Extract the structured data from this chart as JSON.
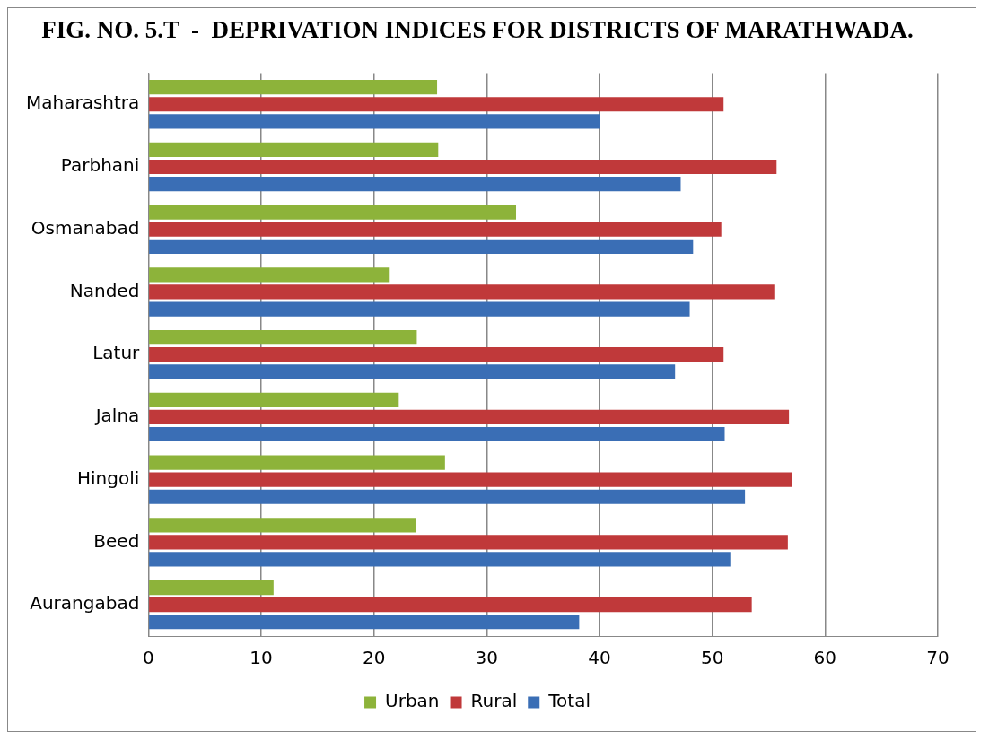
{
  "chart_data": {
    "type": "bar",
    "orientation": "horizontal",
    "title": "FIG. NO. 5.T  -  DEPRIVATION INDICES FOR DISTRICTS OF MARATHWADA.",
    "categories": [
      "Maharashtra",
      "Parbhani",
      "Osmanabad",
      "Nanded",
      "Latur",
      "Jalna",
      "Hingoli",
      "Beed",
      "Aurangabad"
    ],
    "series": [
      {
        "name": "Urban",
        "color": "#8db33a",
        "values": [
          25.6,
          25.7,
          32.6,
          21.4,
          23.8,
          22.2,
          26.3,
          23.7,
          11.1
        ]
      },
      {
        "name": "Rural",
        "color": "#c0393a",
        "values": [
          51.0,
          55.7,
          50.8,
          55.5,
          51.0,
          56.8,
          57.1,
          56.7,
          53.5
        ]
      },
      {
        "name": "Total",
        "color": "#3a6eb5",
        "values": [
          40.0,
          47.2,
          48.3,
          48.0,
          46.7,
          51.1,
          52.9,
          51.6,
          38.2
        ]
      }
    ],
    "xlim": [
      0,
      70
    ],
    "xticks": [
      0,
      10,
      20,
      30,
      40,
      50,
      60,
      70
    ],
    "grid": "x",
    "legend": "bottom"
  }
}
